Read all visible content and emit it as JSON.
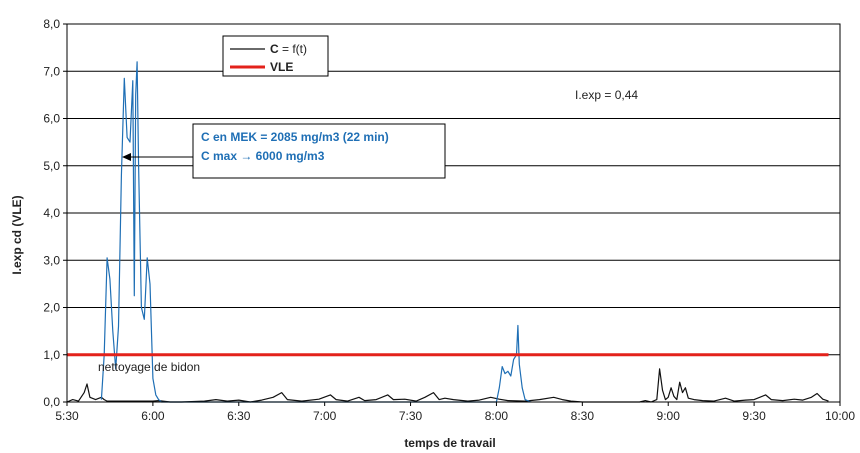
{
  "colors": {
    "c_series": "#111111",
    "mek_overlay": "#1f6fb5",
    "vle_line": "#e3221b",
    "grid": "#000000",
    "callout_text": "#1f6fb5"
  },
  "chart_data": {
    "type": "line",
    "xlabel": "temps de travail",
    "ylabel": "I.exp cd (VLE)",
    "ylim": [
      0,
      8
    ],
    "y_ticks": [
      "0,0",
      "1,0",
      "2,0",
      "3,0",
      "4,0",
      "5,0",
      "6,0",
      "7,0",
      "8,0"
    ],
    "x_range_min": [
      330,
      600
    ],
    "x_ticks": [
      "5:30",
      "6:00",
      "6:30",
      "7:00",
      "7:30",
      "8:00",
      "8:30",
      "9:00",
      "9:30",
      "10:00"
    ],
    "grid": true,
    "legend": {
      "position": "top-left",
      "entries": [
        {
          "label_bold": "C",
          "label_rest": " = f(t)",
          "series": "c"
        },
        {
          "label_bold": "VLE",
          "label_rest": "",
          "series": "vle"
        }
      ]
    },
    "series": [
      {
        "name": "C = f(t)",
        "key": "c",
        "color_key": "c_series",
        "points": [
          [
            330,
            0
          ],
          [
            332,
            0.05
          ],
          [
            334,
            0.02
          ],
          [
            336,
            0.2
          ],
          [
            337,
            0.38
          ],
          [
            338,
            0.1
          ],
          [
            340,
            0.05
          ],
          [
            342,
            0.1
          ],
          [
            343,
            0.05
          ],
          [
            344,
            0.02
          ],
          [
            360,
            0.02
          ],
          [
            362,
            0.03
          ],
          [
            366,
            0.0
          ],
          [
            370,
            0.0
          ],
          [
            378,
            0.02
          ],
          [
            382,
            0.05
          ],
          [
            386,
            0.02
          ],
          [
            390,
            0.04
          ],
          [
            394,
            0.0
          ],
          [
            398,
            0.04
          ],
          [
            402,
            0.1
          ],
          [
            405,
            0.2
          ],
          [
            407,
            0.05
          ],
          [
            412,
            0.02
          ],
          [
            418,
            0.06
          ],
          [
            422,
            0.15
          ],
          [
            424,
            0.05
          ],
          [
            428,
            0.02
          ],
          [
            432,
            0.1
          ],
          [
            434,
            0.03
          ],
          [
            438,
            0.05
          ],
          [
            442,
            0.15
          ],
          [
            444,
            0.05
          ],
          [
            448,
            0.06
          ],
          [
            452,
            0.02
          ],
          [
            455,
            0.1
          ],
          [
            458,
            0.2
          ],
          [
            460,
            0.05
          ],
          [
            462,
            0.08
          ],
          [
            465,
            0.05
          ],
          [
            470,
            0.02
          ],
          [
            474,
            0.04
          ],
          [
            478,
            0.1
          ],
          [
            481,
            0.06
          ],
          [
            484,
            0.03
          ],
          [
            490,
            0.02
          ],
          [
            495,
            0.05
          ],
          [
            500,
            0.1
          ],
          [
            503,
            0.05
          ],
          [
            506,
            0.02
          ],
          [
            510,
            0.0
          ],
          [
            530,
            0.0
          ],
          [
            532,
            0.03
          ],
          [
            534,
            0.0
          ],
          [
            536,
            0.05
          ],
          [
            537,
            0.7
          ],
          [
            538,
            0.25
          ],
          [
            539,
            0.05
          ],
          [
            540,
            0.1
          ],
          [
            541,
            0.3
          ],
          [
            542,
            0.12
          ],
          [
            543,
            0.05
          ],
          [
            544,
            0.42
          ],
          [
            545,
            0.2
          ],
          [
            546,
            0.3
          ],
          [
            547,
            0.08
          ],
          [
            549,
            0.05
          ],
          [
            552,
            0.03
          ],
          [
            556,
            0.02
          ],
          [
            560,
            0.08
          ],
          [
            563,
            0.02
          ],
          [
            567,
            0.04
          ],
          [
            570,
            0.05
          ],
          [
            574,
            0.15
          ],
          [
            576,
            0.05
          ],
          [
            580,
            0.03
          ],
          [
            584,
            0.06
          ],
          [
            587,
            0.04
          ],
          [
            590,
            0.1
          ],
          [
            592,
            0.18
          ],
          [
            594,
            0.06
          ],
          [
            596,
            0.02
          ]
        ]
      },
      {
        "name": "",
        "key": "mek",
        "color_key": "mek_overlay",
        "points": [
          [
            342,
            0.05
          ],
          [
            343,
            1.0
          ],
          [
            344,
            3.05
          ],
          [
            345,
            2.6
          ],
          [
            346,
            1.5
          ],
          [
            347,
            0.7
          ],
          [
            348,
            1.6
          ],
          [
            349,
            4.8
          ],
          [
            350,
            6.85
          ],
          [
            351,
            5.6
          ],
          [
            352,
            5.5
          ],
          [
            353,
            6.8
          ],
          [
            353.5,
            2.25
          ],
          [
            354,
            6.5
          ],
          [
            354.5,
            7.2
          ],
          [
            355,
            5.0
          ],
          [
            356,
            2.0
          ],
          [
            357,
            1.75
          ],
          [
            358,
            3.05
          ],
          [
            359,
            2.5
          ],
          [
            360,
            0.5
          ],
          [
            361,
            0.15
          ],
          [
            362,
            0.05
          ],
          [
            363,
            0.0
          ],
          [
            480,
            0.0
          ],
          [
            481,
            0.3
          ],
          [
            482,
            0.75
          ],
          [
            483,
            0.6
          ],
          [
            484,
            0.65
          ],
          [
            485,
            0.55
          ],
          [
            486,
            0.9
          ],
          [
            487,
            1.0
          ],
          [
            487.5,
            1.62
          ],
          [
            488,
            0.8
          ],
          [
            489,
            0.3
          ],
          [
            490,
            0.05
          ],
          [
            492,
            0.0
          ]
        ]
      },
      {
        "name": "VLE",
        "key": "vle",
        "color_key": "vle_line",
        "points": [
          [
            330,
            1.0
          ],
          [
            596,
            1.0
          ]
        ]
      }
    ],
    "annotations": {
      "iexp": "I.exp = 0,44",
      "nettoyage": "nettoyage de bidon",
      "callout_line1": "C en MEK = 2085 mg/m3 (22 min)",
      "callout_line2": "C max → 6000 mg/m3"
    }
  }
}
